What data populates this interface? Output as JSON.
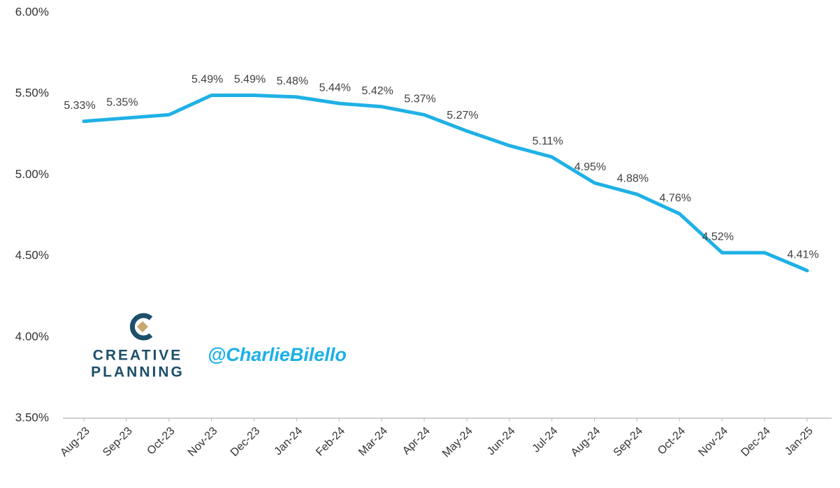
{
  "chart_data": {
    "type": "line",
    "categories": [
      "Aug-23",
      "Sep-23",
      "Oct-23",
      "Nov-23",
      "Dec-23",
      "Jan-24",
      "Feb-24",
      "Mar-24",
      "Apr-24",
      "May-24",
      "Jun-24",
      "Jul-24",
      "Aug-24",
      "Sep-24",
      "Oct-24",
      "Nov-24",
      "Dec-24",
      "Jan-25"
    ],
    "series": [
      {
        "color": "#1fb1e6",
        "values": [
          5.33,
          5.35,
          5.37,
          5.49,
          5.49,
          5.48,
          5.44,
          5.42,
          5.37,
          5.27,
          5.18,
          5.11,
          4.95,
          4.88,
          4.76,
          4.52,
          4.52,
          4.41
        ],
        "value_labels": [
          "5.33%",
          "5.35%",
          null,
          "5.49%",
          "5.49%",
          "5.48%",
          "5.44%",
          "5.42%",
          "5.37%",
          "5.27%",
          null,
          "5.11%",
          "4.95%",
          "4.88%",
          "4.76%",
          "4.52%",
          null,
          "4.41%"
        ]
      }
    ],
    "ylim": [
      3.5,
      6.0
    ],
    "yticks": [
      {
        "value": 3.5,
        "label": "3.50%"
      },
      {
        "value": 4.0,
        "label": "4.00%"
      },
      {
        "value": 4.5,
        "label": "4.50%"
      },
      {
        "value": 5.0,
        "label": "5.00%"
      },
      {
        "value": 5.5,
        "label": "5.50%"
      },
      {
        "value": 6.0,
        "label": "6.00%"
      }
    ],
    "grid": false,
    "annotations": [
      "CREATIVE",
      "PLANNING",
      "@CharlieBilello"
    ]
  }
}
